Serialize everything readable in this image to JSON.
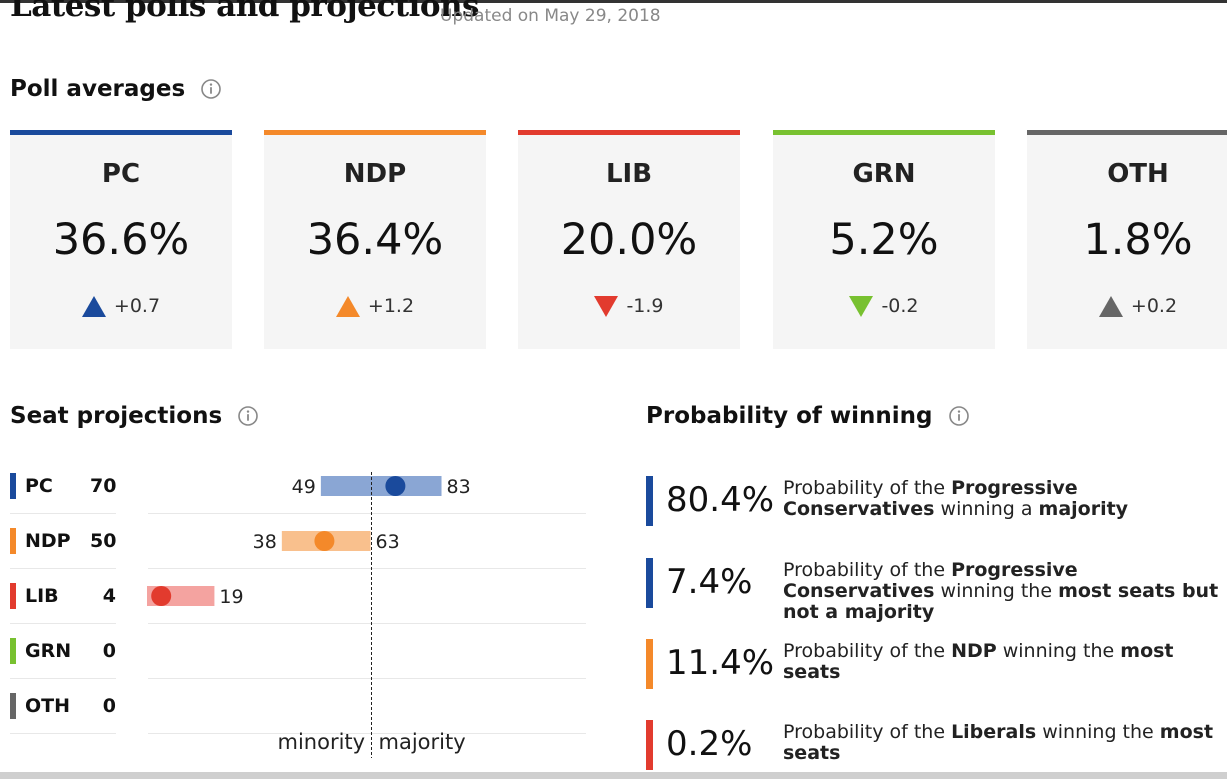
{
  "header": {
    "title": "Latest polls and projections",
    "updated": "Updated on May 29, 2018"
  },
  "poll_averages": {
    "heading": "Poll averages",
    "cards": [
      {
        "abbr": "PC",
        "pct": "36.6%",
        "change": "+0.7",
        "direction": "up",
        "color": "#1a4a9c"
      },
      {
        "abbr": "NDP",
        "pct": "36.4%",
        "change": "+1.2",
        "direction": "up",
        "color": "#f4892a"
      },
      {
        "abbr": "LIB",
        "pct": "20.0%",
        "change": "-1.9",
        "direction": "down",
        "color": "#e23b2e"
      },
      {
        "abbr": "GRN",
        "pct": "5.2%",
        "change": "-0.2",
        "direction": "down",
        "color": "#78c130"
      },
      {
        "abbr": "OTH",
        "pct": "1.8%",
        "change": "+0.2",
        "direction": "up",
        "color": "#666666"
      }
    ]
  },
  "seat_projections": {
    "heading": "Seat projections",
    "rows": [
      {
        "abbr": "PC",
        "seats": "70",
        "color": "#1a4a9c"
      },
      {
        "abbr": "NDP",
        "seats": "50",
        "color": "#f4892a"
      },
      {
        "abbr": "LIB",
        "seats": "4",
        "color": "#e23b2e"
      },
      {
        "abbr": "GRN",
        "seats": "0",
        "color": "#78c130"
      },
      {
        "abbr": "OTH",
        "seats": "0",
        "color": "#666666"
      }
    ],
    "minority_label": "minority",
    "majority_label": "majority"
  },
  "chart_data": {
    "type": "range",
    "categories": [
      "PC",
      "NDP",
      "LIB",
      "GRN",
      "OTH"
    ],
    "low": [
      49,
      38,
      0,
      0,
      0
    ],
    "high": [
      83,
      63,
      19,
      0,
      0
    ],
    "projection": [
      70,
      50,
      4,
      0,
      0
    ],
    "low_labels": [
      "49",
      "38",
      "",
      "",
      ""
    ],
    "high_labels": [
      "83",
      "63",
      "19",
      "",
      ""
    ],
    "majority_threshold": 63,
    "xlim": [
      0,
      124
    ],
    "colors": {
      "bar": [
        "#8aa6d4",
        "#f9c08d",
        "#f4a3a0",
        "#c3e2a5",
        "#c4c4c4"
      ],
      "dot": [
        "#1a4a9c",
        "#f4892a",
        "#e23b2e",
        "#78c130",
        "#666666"
      ]
    }
  },
  "probability": {
    "heading": "Probability of winning",
    "items": [
      {
        "value": "80.4%",
        "color": "#1a4a9c",
        "parts": [
          [
            "Probability of the ",
            false
          ],
          [
            "Progressive Conservatives",
            true
          ],
          [
            " winning a ",
            false
          ],
          [
            "majority",
            true
          ]
        ]
      },
      {
        "value": "7.4%",
        "color": "#1a4a9c",
        "parts": [
          [
            "Probability of the ",
            false
          ],
          [
            "Progressive Conservatives",
            true
          ],
          [
            " winning the ",
            false
          ],
          [
            "most seats but not a majority",
            true
          ]
        ]
      },
      {
        "value": "11.4%",
        "color": "#f4892a",
        "parts": [
          [
            "Probability of the ",
            false
          ],
          [
            "NDP",
            true
          ],
          [
            " winning the ",
            false
          ],
          [
            "most seats",
            true
          ]
        ]
      },
      {
        "value": "0.2%",
        "color": "#e23b2e",
        "parts": [
          [
            "Probability of the ",
            false
          ],
          [
            "Liberals",
            true
          ],
          [
            " winning the ",
            false
          ],
          [
            "most seats",
            true
          ]
        ]
      }
    ]
  },
  "icons": {
    "info": "info-icon",
    "up": "triangle-up-icon",
    "down": "triangle-down-icon"
  }
}
